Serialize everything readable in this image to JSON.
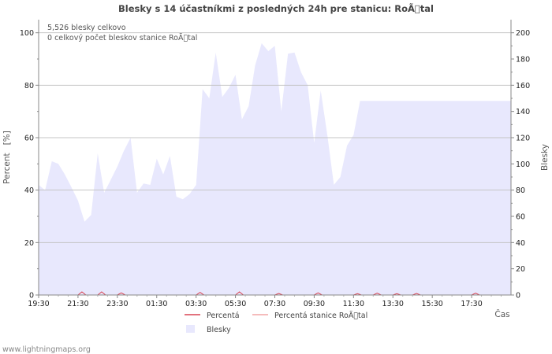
{
  "chart_data": {
    "type": "area",
    "title": "Blesky s 14 účastníkmi z posledných 24h pre stanicu: RoÃ\u0000tal",
    "annotations": [
      "5,526 blesky celkovo",
      "0 celkový počet bleskov stanice RoÃ\u0000tal"
    ],
    "xlabel": "Čas",
    "ylabel_left": "Percent   [%]",
    "ylabel_right": "Blesky",
    "x_ticks": [
      "19:30",
      "21:30",
      "23:30",
      "01:30",
      "03:30",
      "05:30",
      "07:30",
      "09:30",
      "11:30",
      "13:30",
      "15:30",
      "17:30"
    ],
    "y_left_ticks": [
      "0",
      "20",
      "40",
      "60",
      "80",
      "100"
    ],
    "y_right_ticks": [
      "0",
      "20",
      "40",
      "60",
      "80",
      "100",
      "120",
      "140",
      "160",
      "180",
      "200"
    ],
    "ylim_left": [
      0,
      105
    ],
    "ylim_right": [
      0,
      210
    ],
    "x_start_hours": 0,
    "x_end_hours": 24,
    "series": [
      {
        "name": "Blesky",
        "axis": "right",
        "color": "#e8e8fd",
        "x_hours": [
          0.0,
          0.33,
          0.67,
          1.0,
          1.33,
          1.67,
          2.0,
          2.33,
          2.67,
          3.0,
          3.33,
          3.67,
          4.0,
          4.33,
          4.67,
          5.0,
          5.33,
          5.67,
          6.0,
          6.33,
          6.67,
          7.0,
          7.33,
          7.67,
          8.0,
          8.33,
          8.67,
          9.0,
          9.33,
          9.67,
          10.0,
          10.33,
          10.67,
          11.0,
          11.33,
          11.67,
          12.0,
          12.33,
          12.67,
          13.0,
          13.33,
          13.67,
          14.0,
          14.33,
          14.67,
          15.0,
          15.33,
          15.67,
          16.0,
          16.33,
          16.67,
          17.0,
          17.33,
          17.67,
          18.0,
          18.33,
          18.67,
          19.0,
          19.33,
          19.67,
          20.0,
          20.33,
          20.67,
          21.0,
          21.33,
          21.67,
          22.0,
          22.33,
          22.67,
          23.0,
          23.33,
          23.67,
          24.0
        ],
        "values": [
          84,
          80,
          102,
          100,
          92,
          82,
          72,
          56,
          61,
          108,
          78,
          88,
          98,
          110,
          120,
          78,
          85,
          84,
          104,
          92,
          106,
          75,
          73,
          77,
          84,
          157,
          150,
          185,
          151,
          158,
          168,
          134,
          144,
          175,
          192,
          186,
          190,
          140,
          184,
          185,
          170,
          160,
          116,
          156,
          122,
          84,
          90,
          114,
          122,
          148,
          148,
          148,
          148,
          148,
          148,
          148,
          148,
          148,
          148,
          148,
          148,
          148,
          148,
          148,
          148,
          148,
          148,
          148,
          148,
          148,
          148,
          148,
          148
        ]
      },
      {
        "name": "Percentá",
        "axis": "left",
        "color": "#d94452",
        "x_hours": [
          0,
          2,
          2.2,
          2.4,
          3,
          3.2,
          3.4,
          4,
          4.2,
          4.4,
          6,
          8,
          8.2,
          8.4,
          10,
          10.2,
          10.4,
          12,
          12.2,
          12.4,
          14,
          14.2,
          14.4,
          16,
          16.2,
          16.4,
          17,
          17.2,
          17.4,
          18,
          18.2,
          18.4,
          19,
          19.2,
          19.4,
          20,
          21,
          22,
          22.2,
          22.4,
          24
        ],
        "values": [
          0,
          0,
          1.2,
          0,
          0,
          1.2,
          0,
          0,
          0.8,
          0,
          0,
          0,
          1.0,
          0,
          0,
          1.2,
          0,
          0,
          0.6,
          0,
          0,
          0.8,
          0,
          0,
          0.5,
          0,
          0,
          0.7,
          0,
          0,
          0.5,
          0,
          0,
          0.6,
          0,
          0,
          0,
          0,
          0.7,
          0,
          0
        ]
      },
      {
        "name": "Percentá stanice RoÃ\u0000tal",
        "axis": "left",
        "color": "#f2a5a5",
        "x_hours": [
          0,
          24
        ],
        "values": [
          0,
          0
        ]
      }
    ]
  },
  "footer": "www.lightningmaps.org"
}
